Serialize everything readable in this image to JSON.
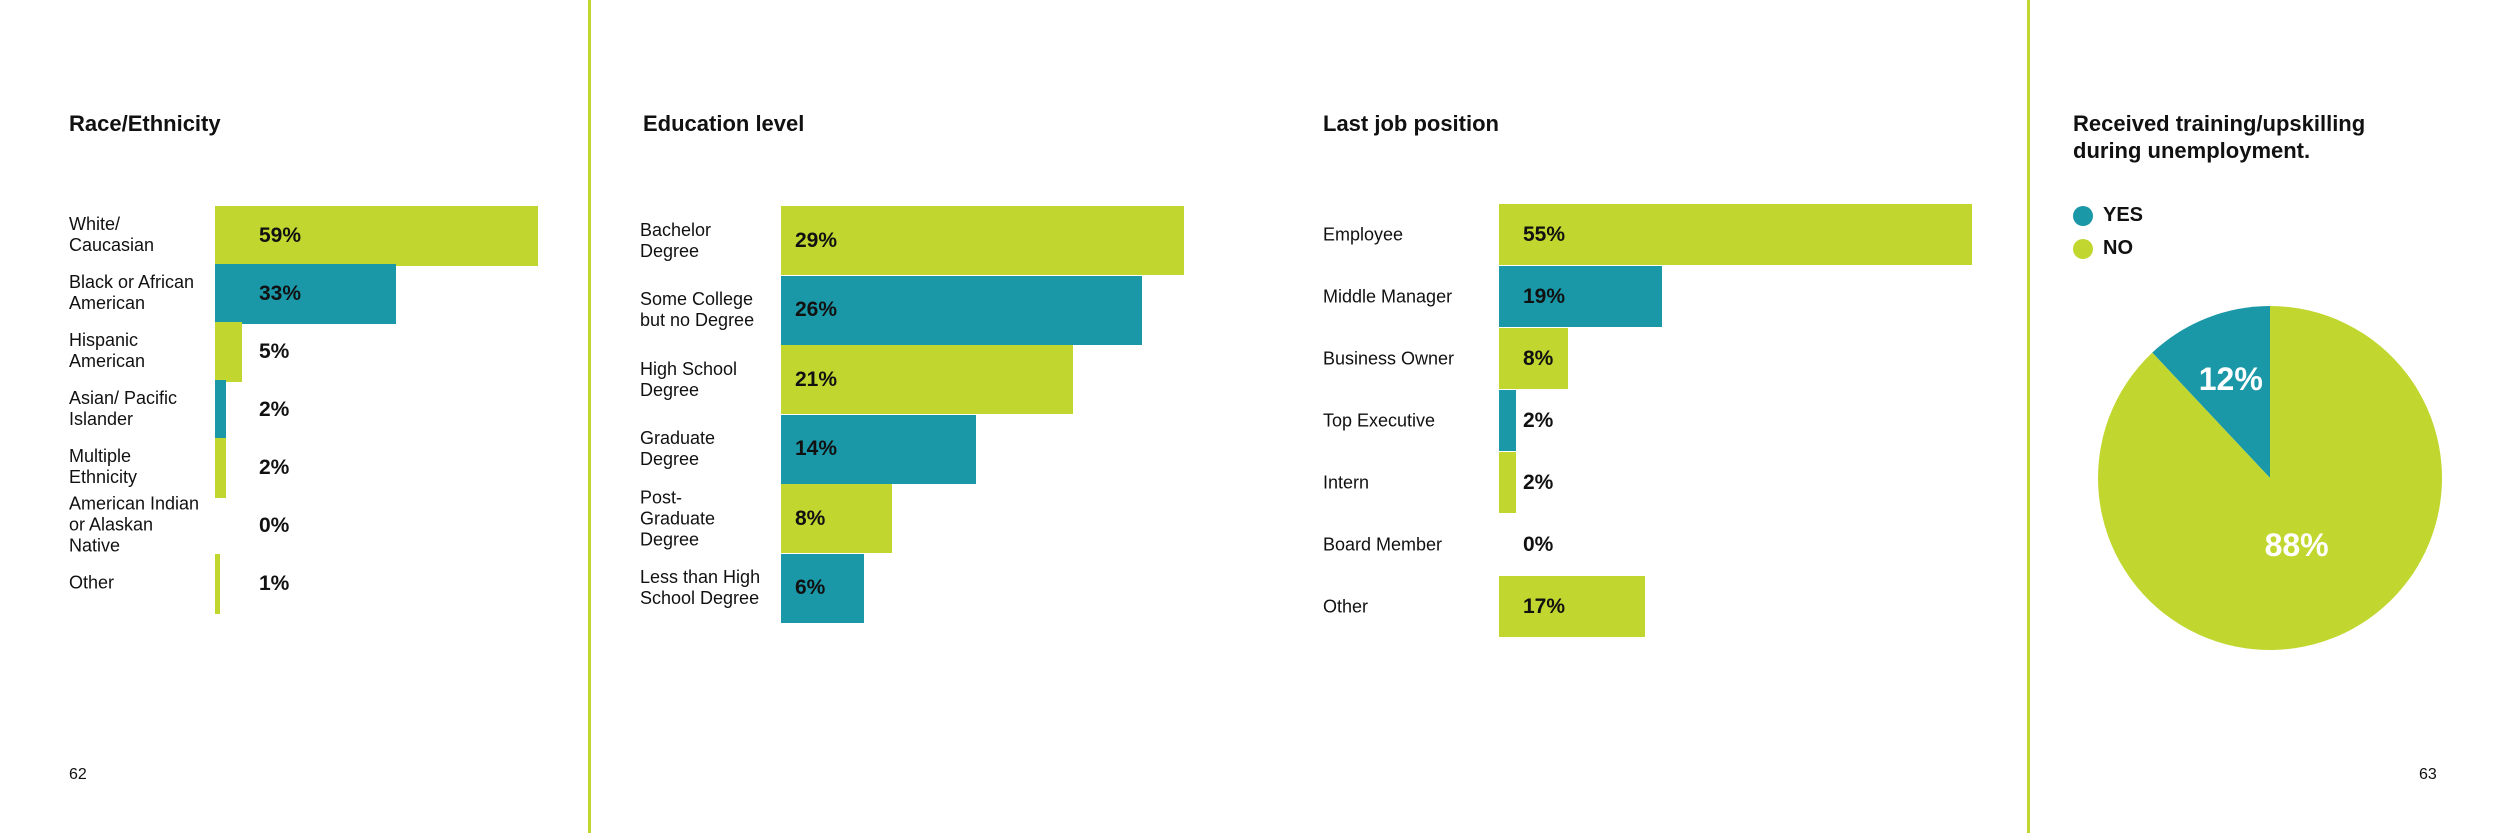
{
  "colors": {
    "lime": "#c1d72f",
    "teal": "#1a98a8",
    "divider": "#c1d72f"
  },
  "pages": {
    "left": "62",
    "right": "63"
  },
  "chart_data": [
    {
      "type": "bar",
      "orientation": "horizontal",
      "title": "Race/Ethnicity",
      "categories": [
        "White/\nCaucasian",
        "Black or African\nAmerican",
        "Hispanic\nAmerican",
        "Asian/ Pacific\nIslander",
        "Multiple\nEthnicity",
        "American Indian\nor Alaskan\nNative",
        "Other"
      ],
      "values": [
        59,
        33,
        5,
        2,
        2,
        0,
        1
      ],
      "labels": [
        "59%",
        "33%",
        "5%",
        "2%",
        "2%",
        "0%",
        "1%"
      ],
      "bar_colors": [
        "lime",
        "teal",
        "lime",
        "teal",
        "lime",
        "teal",
        "lime"
      ],
      "unit": "%"
    },
    {
      "type": "bar",
      "orientation": "horizontal",
      "title": "Education level",
      "categories": [
        "Bachelor\nDegree",
        "Some College\nbut no Degree",
        "High School\nDegree",
        "Graduate\nDegree",
        "Post-\nGraduate\nDegree",
        "Less than High\nSchool Degree"
      ],
      "values": [
        29,
        26,
        21,
        14,
        8,
        6
      ],
      "labels": [
        "29%",
        "26%",
        "21%",
        "14%",
        "8%",
        "6%"
      ],
      "bar_colors": [
        "lime",
        "teal",
        "lime",
        "teal",
        "lime",
        "teal"
      ],
      "unit": "%"
    },
    {
      "type": "bar",
      "orientation": "horizontal",
      "title": "Last job position",
      "categories": [
        "Employee",
        "Middle Manager",
        "Business Owner",
        "Top Executive",
        "Intern",
        "Board Member",
        "Other"
      ],
      "values": [
        55,
        19,
        8,
        2,
        2,
        0,
        17
      ],
      "labels": [
        "55%",
        "19%",
        "8%",
        "2%",
        "2%",
        "0%",
        "17%"
      ],
      "bar_colors": [
        "lime",
        "teal",
        "lime",
        "teal",
        "lime",
        "teal",
        "lime"
      ],
      "unit": "%"
    },
    {
      "type": "pie",
      "title": "Received training/upskilling during unemployment.",
      "slices": [
        {
          "name": "YES",
          "value": 12,
          "label": "12%",
          "color": "teal"
        },
        {
          "name": "NO",
          "value": 88,
          "label": "88%",
          "color": "lime"
        }
      ],
      "legend": "top-left"
    }
  ]
}
